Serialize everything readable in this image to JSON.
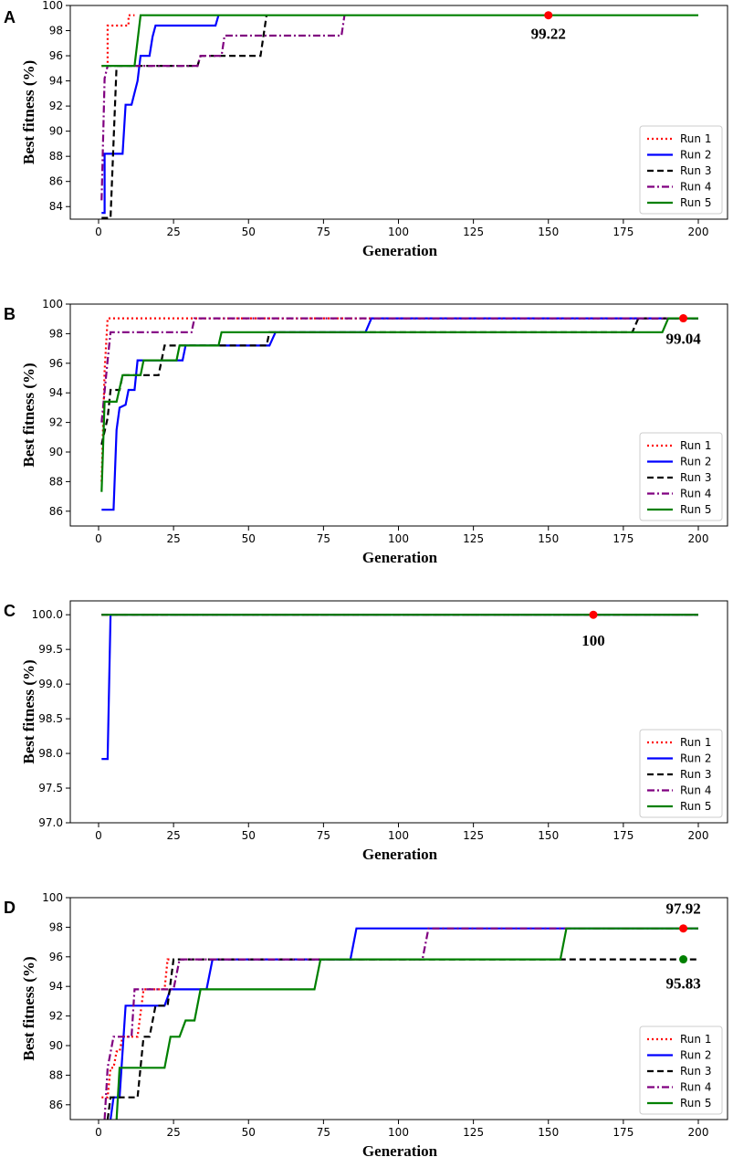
{
  "figure": {
    "xlabel": "Generation",
    "ylabel": "Best fitness (%)"
  },
  "legend": [
    {
      "name": "Run 1",
      "color": "#ff0000",
      "dash": "2,3"
    },
    {
      "name": "Run 2",
      "color": "#0000ff",
      "dash": ""
    },
    {
      "name": "Run 3",
      "color": "#000000",
      "dash": "7,4"
    },
    {
      "name": "Run 4",
      "color": "#800080",
      "dash": "8,3,2,3"
    },
    {
      "name": "Run 5",
      "color": "#008000",
      "dash": ""
    }
  ],
  "chart_data": [
    {
      "panel": "A",
      "type": "line",
      "xlim": [
        1,
        200
      ],
      "ylim": [
        83,
        100
      ],
      "xticks": [
        0,
        25,
        50,
        75,
        100,
        125,
        150,
        175,
        200
      ],
      "yticks": [
        84,
        86,
        88,
        90,
        92,
        94,
        96,
        98,
        100
      ],
      "xlabel": "Generation",
      "ylabel": "Best fitness (%)",
      "series": [
        {
          "name": "Run 1",
          "color": "#ff0000",
          "points": [
            [
              1,
              95.2
            ],
            [
              3,
              95.2
            ],
            [
              3,
              98.4
            ],
            [
              10,
              98.4
            ],
            [
              10,
              99.22
            ],
            [
              12,
              99.22
            ]
          ]
        },
        {
          "name": "Run 2",
          "color": "#0000ff",
          "points": [
            [
              1,
              83.5
            ],
            [
              2,
              83.5
            ],
            [
              2,
              88.2
            ],
            [
              8,
              88.2
            ],
            [
              9,
              92.1
            ],
            [
              11,
              92.1
            ],
            [
              13,
              94
            ],
            [
              14,
              96
            ],
            [
              17,
              96
            ],
            [
              18,
              97.5
            ],
            [
              19,
              98.4
            ],
            [
              39,
              98.4
            ],
            [
              40,
              99.22
            ]
          ]
        },
        {
          "name": "Run 3",
          "color": "#000000",
          "points": [
            [
              1,
              83.1
            ],
            [
              4,
              83.1
            ],
            [
              6,
              95.2
            ],
            [
              33,
              95.2
            ],
            [
              34,
              96
            ],
            [
              54,
              96
            ],
            [
              56,
              99.22
            ]
          ]
        },
        {
          "name": "Run 4",
          "color": "#800080",
          "points": [
            [
              1,
              84.5
            ],
            [
              2,
              94.2
            ],
            [
              3,
              95.2
            ],
            [
              33,
              95.2
            ],
            [
              34,
              96
            ],
            [
              41,
              96
            ],
            [
              42,
              97.6
            ],
            [
              81,
              97.6
            ],
            [
              82,
              99.22
            ]
          ]
        },
        {
          "name": "Run 5",
          "color": "#008000",
          "points": [
            [
              1,
              95.2
            ],
            [
              12,
              95.2
            ],
            [
              14,
              99.22
            ],
            [
              200,
              99.22
            ]
          ]
        }
      ],
      "markers": [
        {
          "x": 150,
          "y": 99.22,
          "color": "#ff0000",
          "label": "99.22"
        }
      ]
    },
    {
      "panel": "B",
      "type": "line",
      "xlim": [
        1,
        200
      ],
      "ylim": [
        85,
        100
      ],
      "xticks": [
        0,
        25,
        50,
        75,
        100,
        125,
        150,
        175,
        200
      ],
      "yticks": [
        86,
        88,
        90,
        92,
        94,
        96,
        98,
        100
      ],
      "xlabel": "Generation",
      "ylabel": "Best fitness (%)",
      "series": [
        {
          "name": "Run 1",
          "color": "#ff0000",
          "points": [
            [
              1,
              88
            ],
            [
              2,
              95.5
            ],
            [
              3,
              99.04
            ],
            [
              200,
              99.04
            ]
          ]
        },
        {
          "name": "Run 2",
          "color": "#0000ff",
          "points": [
            [
              1,
              86.1
            ],
            [
              5,
              86.1
            ],
            [
              6,
              91.5
            ],
            [
              7,
              93
            ],
            [
              9,
              93.2
            ],
            [
              10,
              94.2
            ],
            [
              12,
              94.2
            ],
            [
              13,
              96.2
            ],
            [
              28,
              96.2
            ],
            [
              29,
              97.2
            ],
            [
              57,
              97.2
            ],
            [
              59,
              98.1
            ],
            [
              89,
              98.1
            ],
            [
              91,
              99.04
            ],
            [
              200,
              99.04
            ]
          ]
        },
        {
          "name": "Run 3",
          "color": "#000000",
          "points": [
            [
              1,
              90.5
            ],
            [
              3,
              92.3
            ],
            [
              4,
              94.2
            ],
            [
              7,
              94.2
            ],
            [
              8,
              95.2
            ],
            [
              20,
              95.2
            ],
            [
              22,
              97.2
            ],
            [
              56,
              97.2
            ],
            [
              57,
              98.1
            ],
            [
              178,
              98.1
            ],
            [
              180,
              99.04
            ],
            [
              200,
              99.04
            ]
          ]
        },
        {
          "name": "Run 4",
          "color": "#800080",
          "points": [
            [
              1,
              92
            ],
            [
              3,
              96.2
            ],
            [
              4,
              98.1
            ],
            [
              31,
              98.1
            ],
            [
              32,
              99.04
            ],
            [
              200,
              99.04
            ]
          ]
        },
        {
          "name": "Run 5",
          "color": "#008000",
          "points": [
            [
              1,
              87.3
            ],
            [
              2,
              93.4
            ],
            [
              6,
              93.4
            ],
            [
              8,
              95.2
            ],
            [
              14,
              95.2
            ],
            [
              15,
              96.2
            ],
            [
              26,
              96.2
            ],
            [
              27,
              97.2
            ],
            [
              40,
              97.2
            ],
            [
              41,
              98.1
            ],
            [
              188,
              98.1
            ],
            [
              190,
              99.04
            ],
            [
              200,
              99.04
            ]
          ]
        }
      ],
      "markers": [
        {
          "x": 195,
          "y": 99.04,
          "color": "#ff0000",
          "label": "99.04"
        }
      ]
    },
    {
      "panel": "C",
      "type": "line",
      "xlim": [
        1,
        200
      ],
      "ylim": [
        97.0,
        100.2
      ],
      "xticks": [
        0,
        25,
        50,
        75,
        100,
        125,
        150,
        175,
        200
      ],
      "yticks": [
        97.0,
        97.5,
        98.0,
        98.5,
        99.0,
        99.5,
        100.0
      ],
      "xlabel": "Generation",
      "ylabel": "Best fitness (%)",
      "series": [
        {
          "name": "Run 1",
          "color": "#ff0000",
          "points": [
            [
              1,
              100
            ],
            [
              200,
              100
            ]
          ]
        },
        {
          "name": "Run 2",
          "color": "#0000ff",
          "points": [
            [
              1,
              97.92
            ],
            [
              3,
              97.92
            ],
            [
              4,
              100
            ],
            [
              200,
              100
            ]
          ]
        },
        {
          "name": "Run 3",
          "color": "#000000",
          "points": [
            [
              1,
              100
            ],
            [
              200,
              100
            ]
          ]
        },
        {
          "name": "Run 4",
          "color": "#800080",
          "points": [
            [
              1,
              100
            ],
            [
              200,
              100
            ]
          ]
        },
        {
          "name": "Run 5",
          "color": "#008000",
          "points": [
            [
              1,
              100
            ],
            [
              200,
              100
            ]
          ]
        }
      ],
      "markers": [
        {
          "x": 165,
          "y": 100,
          "color": "#ff0000",
          "label": "100"
        }
      ]
    },
    {
      "panel": "D",
      "type": "line",
      "xlim": [
        1,
        200
      ],
      "ylim": [
        85,
        100
      ],
      "xticks": [
        0,
        25,
        50,
        75,
        100,
        125,
        150,
        175,
        200
      ],
      "yticks": [
        86,
        88,
        90,
        92,
        94,
        96,
        98,
        100
      ],
      "xlabel": "Generation",
      "ylabel": "Best fitness (%)",
      "series": [
        {
          "name": "Run 1",
          "color": "#ff0000",
          "points": [
            [
              1,
              86.5
            ],
            [
              3,
              86.5
            ],
            [
              4,
              88.5
            ],
            [
              5,
              88.5
            ],
            [
              6,
              89.6
            ],
            [
              7,
              89.6
            ],
            [
              8,
              90.6
            ],
            [
              13,
              90.6
            ],
            [
              15,
              93.8
            ],
            [
              22,
              93.8
            ],
            [
              23,
              95.83
            ],
            [
              24,
              95.83
            ]
          ]
        },
        {
          "name": "Run 2",
          "color": "#0000ff",
          "points": [
            [
              4,
              85
            ],
            [
              5,
              86.5
            ],
            [
              7,
              86.5
            ],
            [
              9,
              92.7
            ],
            [
              22,
              92.7
            ],
            [
              24,
              93.8
            ],
            [
              36,
              93.8
            ],
            [
              38,
              95.83
            ],
            [
              84,
              95.83
            ],
            [
              86,
              97.92
            ],
            [
              200,
              97.92
            ]
          ]
        },
        {
          "name": "Run 3",
          "color": "#000000",
          "points": [
            [
              3,
              85
            ],
            [
              4,
              86.5
            ],
            [
              13,
              86.5
            ],
            [
              15,
              90.6
            ],
            [
              17,
              90.6
            ],
            [
              19,
              92.7
            ],
            [
              23,
              92.7
            ],
            [
              25,
              95.83
            ],
            [
              200,
              95.83
            ]
          ]
        },
        {
          "name": "Run 4",
          "color": "#800080",
          "points": [
            [
              2,
              85
            ],
            [
              3,
              88.5
            ],
            [
              5,
              90.6
            ],
            [
              11,
              90.6
            ],
            [
              12,
              93.8
            ],
            [
              25,
              93.8
            ],
            [
              27,
              95.83
            ],
            [
              108,
              95.83
            ],
            [
              110,
              97.92
            ],
            [
              200,
              97.92
            ]
          ]
        },
        {
          "name": "Run 5",
          "color": "#008000",
          "points": [
            [
              6,
              85
            ],
            [
              7,
              88.5
            ],
            [
              22,
              88.5
            ],
            [
              24,
              90.6
            ],
            [
              27,
              90.6
            ],
            [
              29,
              91.7
            ],
            [
              32,
              91.7
            ],
            [
              34,
              93.8
            ],
            [
              72,
              93.8
            ],
            [
              74,
              95.83
            ],
            [
              154,
              95.83
            ],
            [
              156,
              97.92
            ],
            [
              200,
              97.92
            ]
          ]
        }
      ],
      "markers": [
        {
          "x": 195,
          "y": 97.92,
          "color": "#ff0000",
          "label": "97.92"
        },
        {
          "x": 195,
          "y": 95.83,
          "color": "#008000",
          "label": "95.83"
        }
      ]
    }
  ]
}
